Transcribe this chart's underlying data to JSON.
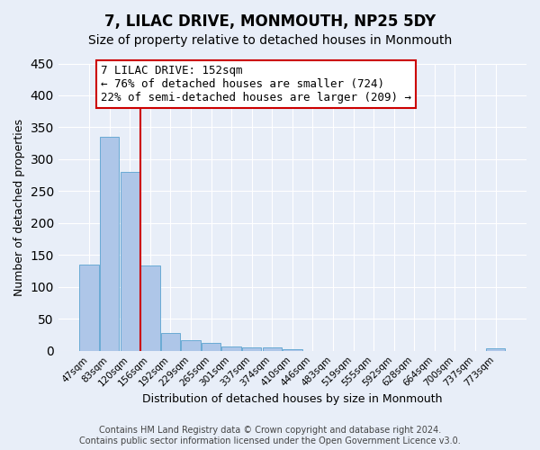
{
  "title": "7, LILAC DRIVE, MONMOUTH, NP25 5DY",
  "subtitle": "Size of property relative to detached houses in Monmouth",
  "xlabel": "Distribution of detached houses by size in Monmouth",
  "ylabel": "Number of detached properties",
  "bar_labels": [
    "47sqm",
    "83sqm",
    "120sqm",
    "156sqm",
    "192sqm",
    "229sqm",
    "265sqm",
    "301sqm",
    "337sqm",
    "374sqm",
    "410sqm",
    "446sqm",
    "483sqm",
    "519sqm",
    "555sqm",
    "592sqm",
    "628sqm",
    "664sqm",
    "700sqm",
    "737sqm",
    "773sqm"
  ],
  "bar_heights": [
    135,
    335,
    280,
    133,
    28,
    17,
    12,
    7,
    5,
    5,
    3,
    0,
    0,
    0,
    0,
    0,
    0,
    0,
    0,
    0,
    4
  ],
  "bar_color": "#aec6e8",
  "bar_edgecolor": "#6aaad4",
  "property_line_color": "#cc0000",
  "annotation_text": "7 LILAC DRIVE: 152sqm\n← 76% of detached houses are smaller (724)\n22% of semi-detached houses are larger (209) →",
  "annotation_box_edgecolor": "#cc0000",
  "ylim": [
    0,
    450
  ],
  "yticks": [
    0,
    50,
    100,
    150,
    200,
    250,
    300,
    350,
    400,
    450
  ],
  "footer_line1": "Contains HM Land Registry data © Crown copyright and database right 2024.",
  "footer_line2": "Contains public sector information licensed under the Open Government Licence v3.0.",
  "background_color": "#e8eef8",
  "plot_background": "#e8eef8",
  "grid_color": "#ffffff",
  "title_fontsize": 12,
  "subtitle_fontsize": 10,
  "annotation_fontsize": 9,
  "footer_fontsize": 7
}
